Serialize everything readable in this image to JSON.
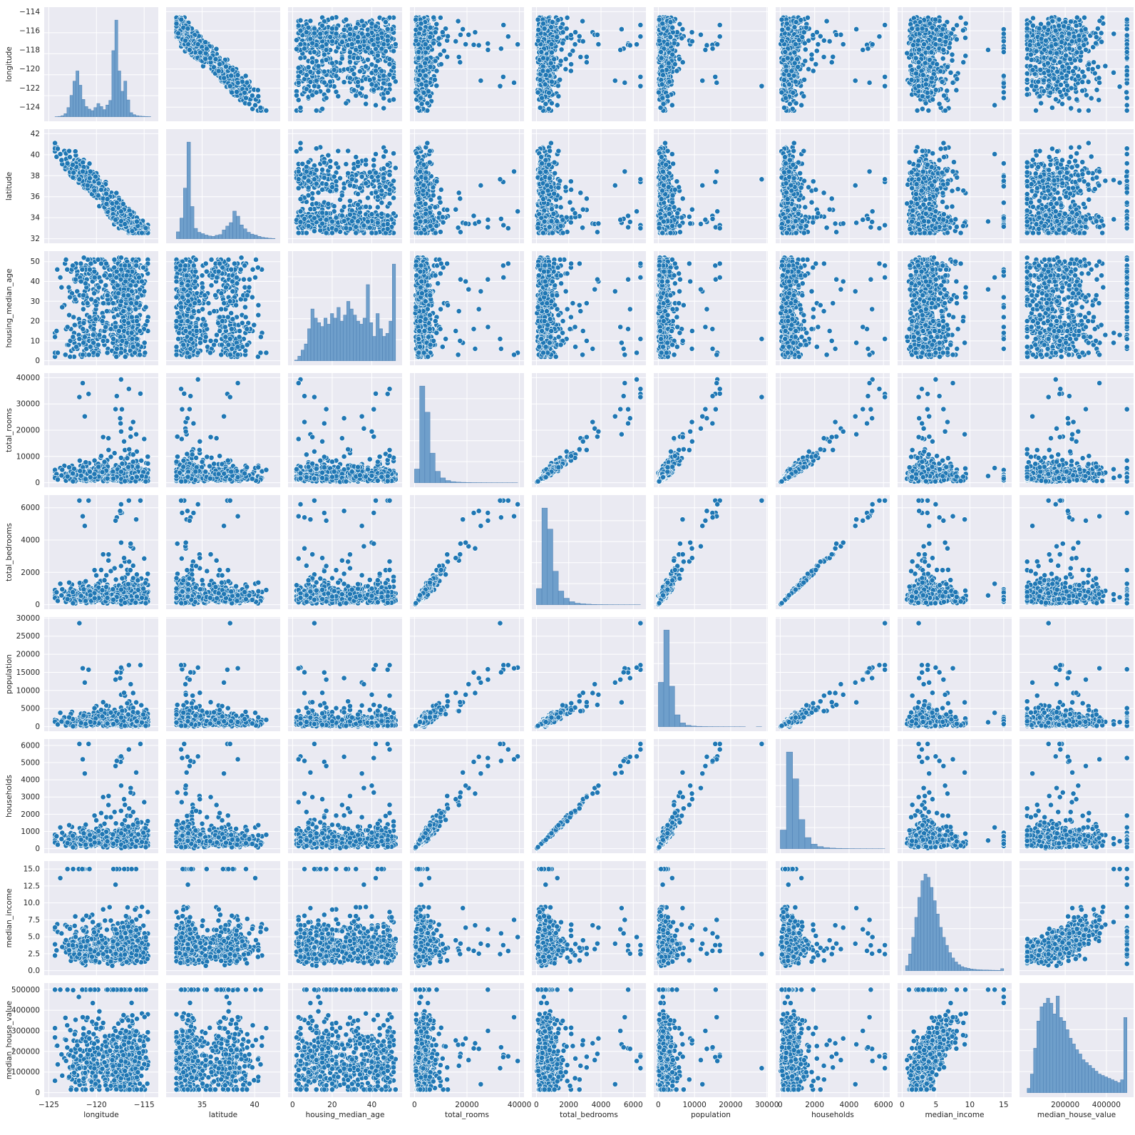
{
  "figure": {
    "variables": [
      "longitude",
      "latitude",
      "housing_median_age",
      "total_rooms",
      "total_bedrooms",
      "population",
      "households",
      "median_income",
      "median_house_value"
    ]
  },
  "colors": {
    "panel_bg": "#eaeaf2",
    "grid": "#ffffff",
    "point": "#1f77b4",
    "point_edge": "#ffffff",
    "hist_bar": "#6f9fcb",
    "hist_edge": "#4c7fb3",
    "text": "#262626"
  },
  "chart_data": {
    "type": "scatter",
    "kind": "pairplot",
    "diagonal": "histogram",
    "grid": true,
    "variables": [
      {
        "name": "longitude",
        "range": [
          -125,
          -114
        ],
        "ticks": [
          -124,
          -122,
          -120,
          -118,
          -116,
          -114
        ],
        "ylabels": [
          "−124",
          "−122",
          "−120",
          "−118",
          "−116",
          "−114"
        ],
        "xticks": [
          -125,
          -120,
          -115
        ],
        "xlabels": [
          "−125",
          "−120",
          "−115"
        ]
      },
      {
        "name": "latitude",
        "range": [
          32,
          42
        ],
        "ticks": [
          32,
          34,
          36,
          38,
          40,
          42
        ],
        "ylabels": [
          "32",
          "34",
          "36",
          "38",
          "40",
          "42"
        ],
        "xticks": [
          35,
          40
        ],
        "xlabels": [
          "35",
          "40"
        ]
      },
      {
        "name": "housing_median_age",
        "range": [
          0,
          53
        ],
        "ticks": [
          0,
          10,
          20,
          30,
          40,
          50
        ],
        "ylabels": [
          "0",
          "10",
          "20",
          "30",
          "40",
          "50"
        ],
        "xticks": [
          0,
          20,
          40
        ],
        "xlabels": [
          "0",
          "20",
          "40"
        ]
      },
      {
        "name": "total_rooms",
        "range": [
          0,
          40000
        ],
        "ticks": [
          0,
          10000,
          20000,
          30000,
          40000
        ],
        "ylabels": [
          "0",
          "10000",
          "20000",
          "30000",
          "40000"
        ],
        "xticks": [
          0,
          20000,
          40000
        ],
        "xlabels": [
          "0",
          "20000",
          "40000"
        ]
      },
      {
        "name": "total_bedrooms",
        "range": [
          0,
          6500
        ],
        "ticks": [
          0,
          2000,
          4000,
          6000
        ],
        "ylabels": [
          "0",
          "2000",
          "4000",
          "6000"
        ],
        "xticks": [
          0,
          2000,
          4000,
          6000
        ],
        "xlabels": [
          "0",
          "2000",
          "4000",
          "6000"
        ]
      },
      {
        "name": "population",
        "range": [
          0,
          29000
        ],
        "ticks": [
          0,
          5000,
          10000,
          15000,
          20000,
          25000,
          30000
        ],
        "ylabels": [
          "0",
          "5000",
          "10000",
          "15000",
          "20000",
          "25000",
          "30000"
        ],
        "xticks": [
          0,
          10000,
          20000,
          30000
        ],
        "xlabels": [
          "0",
          "10000",
          "20000",
          "30000"
        ]
      },
      {
        "name": "households",
        "range": [
          0,
          6100
        ],
        "ticks": [
          0,
          1000,
          2000,
          3000,
          4000,
          5000,
          6000
        ],
        "ylabels": [
          "0",
          "1000",
          "2000",
          "3000",
          "4000",
          "5000",
          "6000"
        ],
        "xticks": [
          0,
          2000,
          4000,
          6000
        ],
        "xlabels": [
          "0",
          "2000",
          "4000",
          "6000"
        ]
      },
      {
        "name": "median_income",
        "range": [
          0,
          15.5
        ],
        "ticks": [
          0,
          2.5,
          5,
          7.5,
          10,
          12.5,
          15
        ],
        "ylabels": [
          "0.0",
          "2.5",
          "5.0",
          "7.5",
          "10.0",
          "12.5",
          "15.0"
        ],
        "xticks": [
          0,
          5,
          10,
          15
        ],
        "xlabels": [
          "0",
          "5",
          "10",
          "15"
        ]
      },
      {
        "name": "median_house_value",
        "range": [
          0,
          510000
        ],
        "ticks": [
          0,
          100000,
          200000,
          300000,
          400000,
          500000
        ],
        "ylabels": [
          "0",
          "100000",
          "200000",
          "300000",
          "400000",
          "500000"
        ],
        "xticks": [
          200000,
          400000
        ],
        "xlabels": [
          "200000",
          "400000"
        ]
      }
    ],
    "histograms": {
      "longitude": {
        "bin_edges_range": [
          -124.35,
          -114.31
        ],
        "counts": [
          2,
          6,
          20,
          60,
          180,
          420,
          700,
          900,
          620,
          340,
          200,
          150,
          120,
          180,
          260,
          200,
          140,
          230,
          320,
          1300,
          1900,
          900,
          500,
          700,
          330,
          80,
          40,
          20,
          12,
          8,
          5,
          3
        ]
      },
      "latitude": {
        "bin_edges_range": [
          32.54,
          41.95
        ],
        "counts": [
          300,
          900,
          2200,
          4200,
          1400,
          450,
          280,
          220,
          160,
          120,
          100,
          150,
          180,
          380,
          550,
          700,
          1200,
          980,
          600,
          430,
          280,
          200,
          160,
          100,
          60,
          40,
          20,
          12
        ]
      },
      "housing_median_age": {
        "bin_edges_range": [
          1,
          52
        ],
        "counts": [
          8,
          60,
          140,
          220,
          420,
          680,
          560,
          500,
          450,
          560,
          480,
          620,
          560,
          700,
          520,
          600,
          780,
          680,
          600,
          520,
          480,
          560,
          1000,
          500,
          320,
          620,
          420,
          320,
          360,
          520,
          1270
        ]
      },
      "total_rooms": {
        "bin_edges_range": [
          2,
          39320
        ],
        "counts": [
          1200,
          8500,
          6200,
          2600,
          1000,
          420,
          190,
          90,
          50,
          30,
          18,
          10,
          8,
          5,
          3,
          2,
          2,
          1,
          1,
          1
        ]
      },
      "total_bedrooms": {
        "bin_edges_range": [
          1,
          6445
        ],
        "counts": [
          1300,
          7800,
          6100,
          2700,
          1100,
          520,
          240,
          120,
          70,
          40,
          20,
          12,
          8,
          4,
          3,
          2,
          1,
          1,
          1
        ]
      },
      "population": {
        "bin_edges_range": [
          3,
          28566
        ],
        "counts": [
          4500,
          9800,
          4100,
          1200,
          380,
          140,
          60,
          30,
          14,
          8,
          5,
          3,
          2,
          1,
          1,
          1,
          0,
          0,
          1
        ]
      },
      "households": {
        "bin_edges_range": [
          1,
          6082
        ],
        "counts": [
          1600,
          8300,
          6000,
          2500,
          950,
          390,
          180,
          90,
          45,
          25,
          15,
          8,
          5,
          3,
          2,
          1,
          1
        ]
      },
      "median_income": {
        "bin_edges_range": [
          0.5,
          15.0
        ],
        "counts": [
          150,
          500,
          1000,
          1600,
          2200,
          2700,
          2900,
          2800,
          2500,
          2100,
          1700,
          1300,
          1000,
          760,
          540,
          380,
          260,
          180,
          120,
          90,
          70,
          50,
          40,
          30,
          25,
          20,
          20,
          15,
          12,
          10,
          8,
          60
        ]
      },
      "median_house_value": {
        "bin_edges_range": [
          14999,
          500001
        ],
        "counts": [
          60,
          260,
          620,
          1000,
          1200,
          1250,
          1320,
          1250,
          1100,
          1350,
          1050,
          1000,
          880,
          760,
          680,
          600,
          540,
          460,
          420,
          380,
          340,
          300,
          260,
          240,
          220,
          200,
          180,
          160,
          140,
          180,
          1050
        ]
      }
    },
    "notable_points": {
      "total_rooms_vs_total_bedrooms": [
        [
          39320,
          6445
        ],
        [
          37937,
          5471
        ],
        [
          32627,
          6445
        ]
      ],
      "population_max": 28566,
      "households_max": 6082,
      "total_rooms_max": 39320
    }
  }
}
